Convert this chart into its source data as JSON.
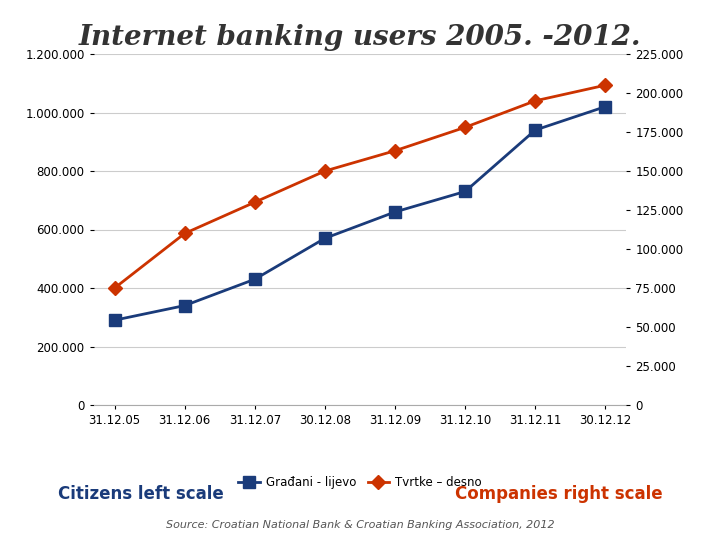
{
  "title": "Internet banking users 2005. -2012.",
  "title_fontsize": 20,
  "title_color": "#333333",
  "background_color": "#ffffff",
  "x_labels": [
    "31.12.05",
    "31.12.06",
    "31.12.07",
    "30.12.08",
    "31.12.09",
    "31.12.10",
    "31.12.11",
    "30.12.12"
  ],
  "citizens": [
    290000,
    340000,
    430000,
    570000,
    660000,
    730000,
    940000,
    1020000
  ],
  "companies": [
    75000,
    110000,
    130000,
    150000,
    163000,
    178000,
    195000,
    205000
  ],
  "citizens_color": "#1a3b7a",
  "companies_color": "#cc3300",
  "left_ylim": [
    0,
    1200000
  ],
  "right_ylim": [
    0,
    225000
  ],
  "left_yticks": [
    0,
    200000,
    400000,
    600000,
    800000,
    1000000,
    1200000
  ],
  "right_yticks": [
    0,
    25000,
    50000,
    75000,
    100000,
    125000,
    150000,
    175000,
    200000,
    225000
  ],
  "left_yticklabels": [
    "0",
    "200.000",
    "400.000",
    "600.000",
    "800.000",
    "1.000.000",
    "1.200.000"
  ],
  "right_yticklabels": [
    "0",
    "25.000",
    "50.000",
    "75.000",
    "100.000",
    "125.000",
    "150.000",
    "175.000",
    "200.000",
    "225.000"
  ],
  "legend_labels": [
    "Građani - lijevo",
    "Tvrtke – desno"
  ],
  "xlabel_left": "Citizens left scale",
  "xlabel_right": "Companies right scale",
  "source_text": "Source: Croatian National Bank & Croatian Banking Association, 2012",
  "grid_color": "#cccccc",
  "citizen_marker_size": 8,
  "company_marker_size": 7,
  "line_width": 2.0
}
